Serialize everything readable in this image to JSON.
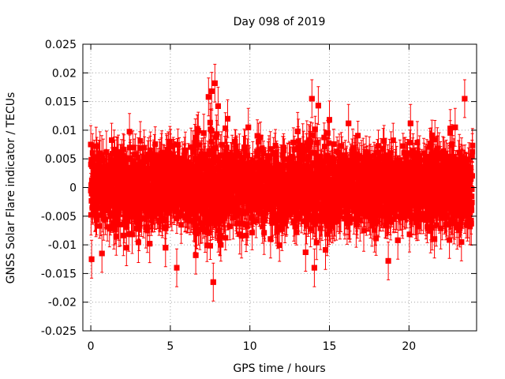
{
  "chart_data": {
    "type": "scatter",
    "title": "Day 098 of 2019",
    "xlabel": "GPS time / hours",
    "ylabel": "GNSS Solar Flare indicator / TECUs",
    "xlim": [
      -0.5,
      24.25
    ],
    "ylim": [
      -0.025,
      0.025
    ],
    "xticks": [
      0,
      5,
      10,
      15,
      20
    ],
    "xtick_labels": [
      "0",
      "5",
      "10",
      "15",
      "20"
    ],
    "yticks": [
      -0.025,
      -0.02,
      -0.015,
      -0.01,
      -0.005,
      0,
      0.005,
      0.01,
      0.015,
      0.02,
      0.025
    ],
    "ytick_labels": [
      "-0.025",
      "-0.02",
      "-0.015",
      "-0.01",
      "-0.005",
      "0",
      "0.005",
      "0.01",
      "0.015",
      "0.02",
      "0.025"
    ],
    "grid": true,
    "marker_color": "#ff0000",
    "series": [
      {
        "name": "GNSS Solar Flare indicator",
        "description_values": "dense noise approx. uniform over 0-24 h, centred on 0, typical spread +/-0.007 TECU",
        "x": [
          0.0,
          0.05,
          0.7,
          1.6,
          2.6,
          3.7,
          4.7,
          5.4,
          6.6,
          7.1,
          7.4,
          7.6,
          7.7,
          7.8,
          8.0,
          8.6,
          9.9,
          11.3,
          13.0,
          13.5,
          13.9,
          14.05,
          14.3,
          15.0,
          16.2,
          18.7,
          19.3,
          20.1,
          21.6,
          22.6,
          22.9,
          23.3,
          23.5
        ],
        "y": [
          0.0075,
          -0.0125,
          -0.0115,
          -0.0085,
          -0.0082,
          -0.0098,
          -0.0105,
          -0.014,
          -0.0118,
          0.0095,
          0.0158,
          0.0168,
          -0.0165,
          0.0182,
          0.0142,
          0.012,
          0.0105,
          -0.009,
          0.0098,
          -0.0113,
          0.0155,
          -0.014,
          0.0143,
          0.0118,
          0.0112,
          -0.0128,
          -0.0092,
          0.0112,
          -0.009,
          0.0103,
          0.0105,
          -0.0095,
          0.0155
        ],
        "error_typical": 0.003
      }
    ]
  }
}
